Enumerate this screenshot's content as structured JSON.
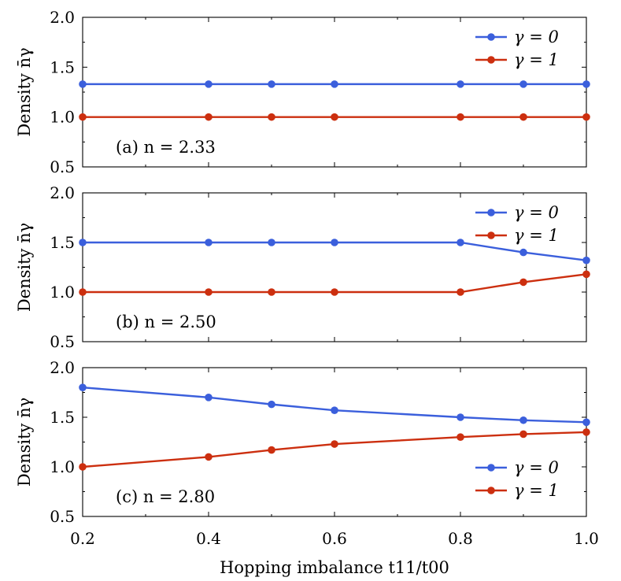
{
  "chart_data": {
    "type": "line",
    "xlabel": "Hopping imbalance t11/t00",
    "ylabel": "Density n̄γ",
    "xlim": [
      0.2,
      1.0
    ],
    "ylim": [
      0.5,
      2.0
    ],
    "xticks": [
      "0.2",
      "0.4",
      "0.6",
      "0.8",
      "1.0"
    ],
    "yticks": [
      "0.5",
      "1.0",
      "1.5",
      "2.0"
    ],
    "grid": false,
    "colors": {
      "gamma0": "#3b5fdc",
      "gamma1": "#cc2f0f"
    },
    "panels": [
      {
        "label": "(a) n = 2.33",
        "legend_position": "top-right",
        "series": [
          {
            "name": "γ = 0",
            "x": [
              0.2,
              0.4,
              0.5,
              0.6,
              0.8,
              0.9,
              1.0
            ],
            "y": [
              1.33,
              1.33,
              1.33,
              1.33,
              1.33,
              1.33,
              1.33
            ]
          },
          {
            "name": "γ = 1",
            "x": [
              0.2,
              0.4,
              0.5,
              0.6,
              0.8,
              0.9,
              1.0
            ],
            "y": [
              1.0,
              1.0,
              1.0,
              1.0,
              1.0,
              1.0,
              1.0
            ]
          }
        ]
      },
      {
        "label": "(b) n = 2.50",
        "legend_position": "top-right",
        "series": [
          {
            "name": "γ = 0",
            "x": [
              0.2,
              0.4,
              0.5,
              0.6,
              0.8,
              0.9,
              1.0
            ],
            "y": [
              1.5,
              1.5,
              1.5,
              1.5,
              1.5,
              1.4,
              1.32
            ]
          },
          {
            "name": "γ = 1",
            "x": [
              0.2,
              0.4,
              0.5,
              0.6,
              0.8,
              0.9,
              1.0
            ],
            "y": [
              1.0,
              1.0,
              1.0,
              1.0,
              1.0,
              1.1,
              1.18
            ]
          }
        ]
      },
      {
        "label": "(c) n = 2.80",
        "legend_position": "bottom-right",
        "series": [
          {
            "name": "γ = 0",
            "x": [
              0.2,
              0.4,
              0.5,
              0.6,
              0.8,
              0.9,
              1.0
            ],
            "y": [
              1.8,
              1.7,
              1.63,
              1.57,
              1.5,
              1.47,
              1.45
            ]
          },
          {
            "name": "γ = 1",
            "x": [
              0.2,
              0.4,
              0.5,
              0.6,
              0.8,
              0.9,
              1.0
            ],
            "y": [
              1.0,
              1.1,
              1.17,
              1.23,
              1.3,
              1.33,
              1.35
            ]
          }
        ]
      }
    ]
  }
}
